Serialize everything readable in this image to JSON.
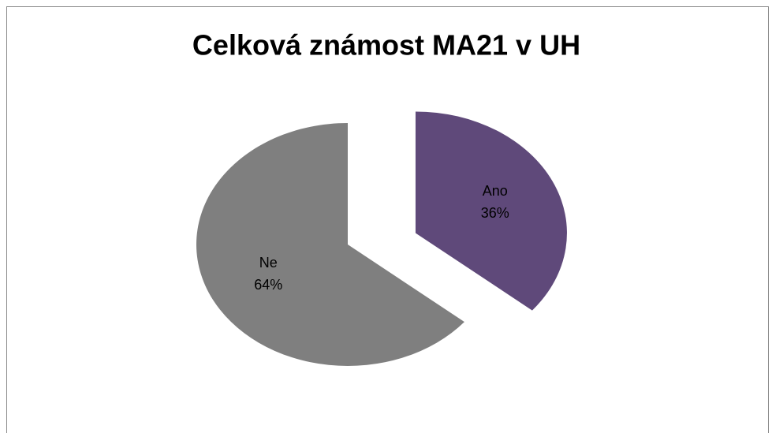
{
  "chart_data": {
    "type": "pie",
    "title": "Celková známost MA21 v UH",
    "categories": [
      "Ano",
      "Ne"
    ],
    "values": [
      36,
      64
    ],
    "value_labels": [
      "36%",
      "64%"
    ],
    "colors": [
      "#5f497a",
      "#7f7f7f"
    ]
  }
}
